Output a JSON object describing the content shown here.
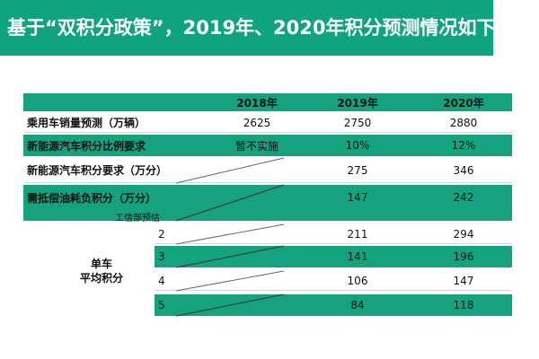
{
  "title": "基于“双积分政策”，2019年、2020年积分预测情况如下：",
  "header": {
    "col_2018": "2018年",
    "col_2019": "2019年",
    "col_2020": "2020年"
  },
  "rows": [
    {
      "label": "乘用车销量预测（万辆）",
      "v2018": "2625",
      "v2019": "2750",
      "v2020": "2880"
    },
    {
      "label": "新能源汽车积分比例要求",
      "v2018": "暂不实施",
      "v2019": "10%",
      "v2020": "12%"
    },
    {
      "label": "新能源汽车积分要求（万分）",
      "v2018": "",
      "v2019": "275",
      "v2020": "346"
    },
    {
      "label": "需抵偿油耗负积分（万分）",
      "v2018": "",
      "v2019": "147",
      "v2020": "242"
    }
  ],
  "subnote": "工信部预估",
  "single_label_line1": "单车",
  "single_label_line2": "平均积分",
  "levels": [
    {
      "level": "2",
      "v2019": "211",
      "v2020": "294"
    },
    {
      "level": "3",
      "v2019": "141",
      "v2020": "196"
    },
    {
      "level": "4",
      "v2019": "106",
      "v2020": "147"
    },
    {
      "level": "5",
      "v2019": "84",
      "v2020": "118"
    }
  ],
  "colors": {
    "accent": "#16a27e",
    "title_bg": "#10a37f"
  }
}
